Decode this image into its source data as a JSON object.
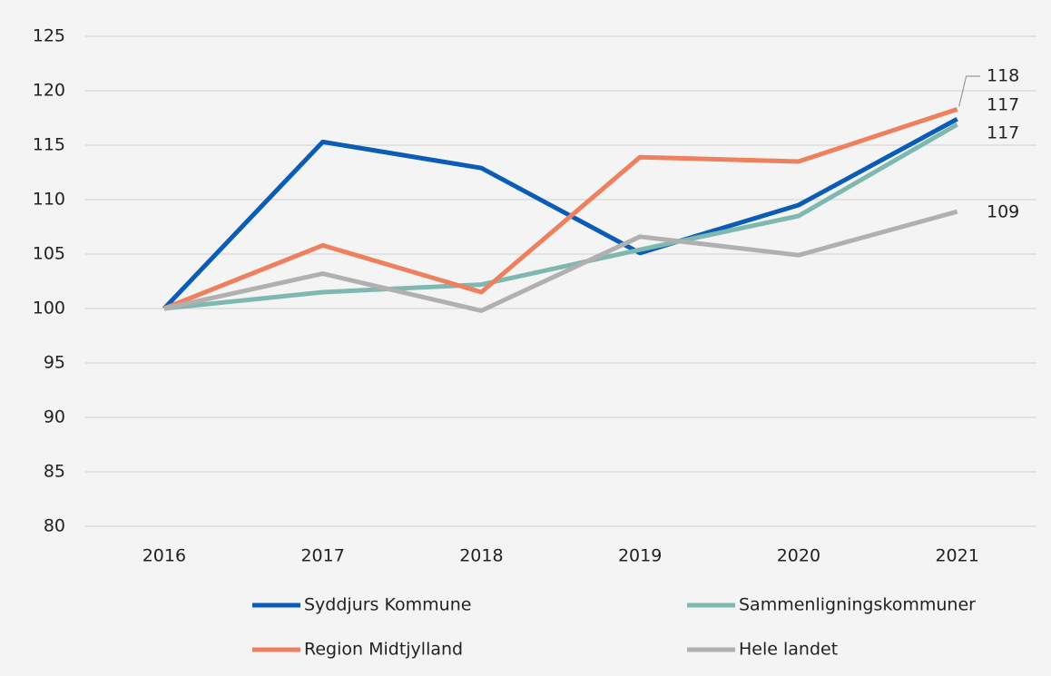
{
  "chart_data": {
    "type": "line",
    "categories": [
      "2016",
      "2017",
      "2018",
      "2019",
      "2020",
      "2021"
    ],
    "series": [
      {
        "name": "Syddjurs Kommune",
        "color": "#0b5cb5",
        "values": [
          100,
          115.3,
          112.9,
          105.1,
          109.5,
          117.4
        ],
        "value_labels": [
          null,
          null,
          null,
          null,
          null,
          "117"
        ]
      },
      {
        "name": "Sammenligningskommuner",
        "color": "#7fb8b0",
        "values": [
          100,
          101.5,
          102.2,
          105.4,
          108.5,
          116.9
        ],
        "value_labels": [
          null,
          null,
          null,
          null,
          null,
          "117"
        ]
      },
      {
        "name": "Region Midtjylland",
        "color": "#ee8060",
        "values": [
          100,
          105.8,
          101.5,
          113.9,
          113.5,
          118.3
        ],
        "value_labels": [
          null,
          null,
          null,
          null,
          null,
          "118"
        ]
      },
      {
        "name": "Hele landet",
        "color": "#b0b0b0",
        "values": [
          100,
          103.2,
          99.8,
          106.6,
          104.9,
          108.9
        ],
        "value_labels": [
          null,
          null,
          null,
          null,
          null,
          "109"
        ]
      }
    ],
    "ylim": [
      80,
      125
    ],
    "yticks": [
      80,
      85,
      90,
      95,
      100,
      105,
      110,
      115,
      120,
      125
    ],
    "grid": true
  }
}
